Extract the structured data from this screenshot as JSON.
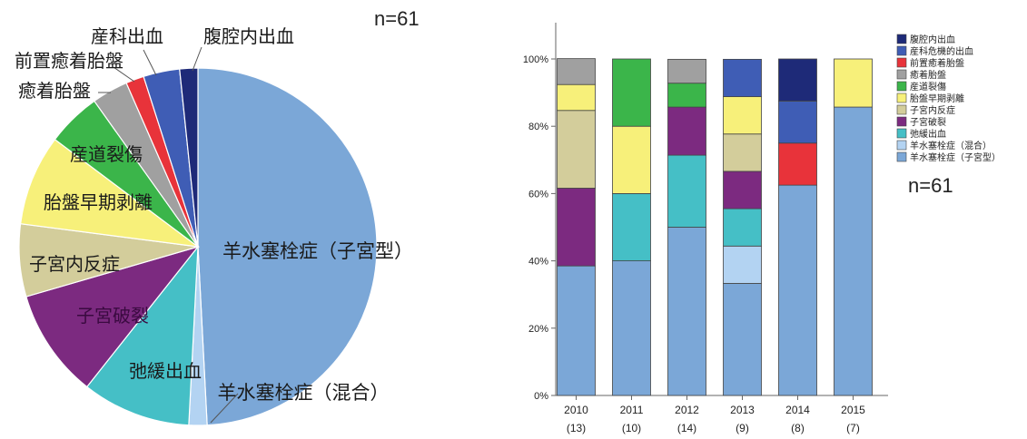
{
  "left_panel": {
    "n_label": "n=61"
  },
  "right_panel": {
    "n_label": "n=61"
  },
  "chart_data": [
    {
      "type": "pie",
      "slices": [
        {
          "label": "羊水塞栓症（子宮型）",
          "value": 30,
          "color": "#7BA7D7"
        },
        {
          "label": "羊水塞栓症（混合）",
          "value": 1,
          "color": "#B3D3F2"
        },
        {
          "label": "弛緩出血",
          "value": 6,
          "color": "#45BFC6"
        },
        {
          "label": "子宮破裂",
          "value": 6,
          "color": "#7C2A80"
        },
        {
          "label": "子宮内反症",
          "value": 4,
          "color": "#D3CD9B"
        },
        {
          "label": "胎盤早期剥離",
          "value": 5,
          "color": "#F7F07A"
        },
        {
          "label": "産道裂傷",
          "value": 3,
          "color": "#3BB54A"
        },
        {
          "label": "癒着胎盤",
          "value": 2,
          "color": "#A0A0A0"
        },
        {
          "label": "前置癒着胎盤",
          "value": 1,
          "color": "#E8333A"
        },
        {
          "label": "産科出血",
          "value": 2,
          "color": "#3F5DB5"
        },
        {
          "label": "腹腔内出血",
          "value": 1,
          "color": "#1E2A78"
        }
      ]
    },
    {
      "type": "bar",
      "stacked": true,
      "categories": [
        "2010",
        "2011",
        "2012",
        "2013",
        "2014",
        "2015"
      ],
      "category_counts": [
        "(13)",
        "(10)",
        "(14)",
        "(9)",
        "(8)",
        "(7)"
      ],
      "ylim": [
        0,
        100
      ],
      "yticks": [
        "0%",
        "20%",
        "40%",
        "60%",
        "80%",
        "100%"
      ],
      "grid": false,
      "legend_position": "top-right",
      "series": [
        {
          "name": "羊水塞栓症（子宮型）",
          "color": "#7BA7D7",
          "values": [
            38.5,
            40,
            50,
            33.3,
            62.5,
            85.7
          ]
        },
        {
          "name": "羊水塞栓症（混合）",
          "color": "#B3D3F2",
          "values": [
            0,
            0,
            0,
            11.1,
            0,
            0
          ]
        },
        {
          "name": "弛緩出血",
          "color": "#45BFC6",
          "values": [
            0,
            20,
            21.4,
            11.1,
            0,
            0
          ]
        },
        {
          "name": "子宮破裂",
          "color": "#7C2A80",
          "values": [
            23.1,
            0,
            14.3,
            11.1,
            0,
            0
          ]
        },
        {
          "name": "子宮内反症",
          "color": "#D3CD9B",
          "values": [
            23.1,
            0,
            0,
            11.1,
            0,
            0
          ]
        },
        {
          "name": "胎盤早期剥離",
          "color": "#F7F07A",
          "values": [
            7.7,
            20,
            0,
            11.1,
            0,
            14.3
          ]
        },
        {
          "name": "産道裂傷",
          "color": "#3BB54A",
          "values": [
            0,
            20,
            7.1,
            0,
            0,
            0
          ]
        },
        {
          "name": "癒着胎盤",
          "color": "#A0A0A0",
          "values": [
            7.7,
            0,
            7.1,
            0,
            0,
            0
          ]
        },
        {
          "name": "前置癒着胎盤",
          "color": "#E8333A",
          "values": [
            0,
            0,
            0,
            0,
            12.5,
            0
          ]
        },
        {
          "name": "産科危機的出血",
          "color": "#3F5DB5",
          "values": [
            0,
            0,
            0,
            11.1,
            12.5,
            0
          ]
        },
        {
          "name": "腹腔内出血",
          "color": "#1E2A78",
          "values": [
            0,
            0,
            0,
            0,
            12.5,
            0
          ]
        }
      ]
    }
  ]
}
